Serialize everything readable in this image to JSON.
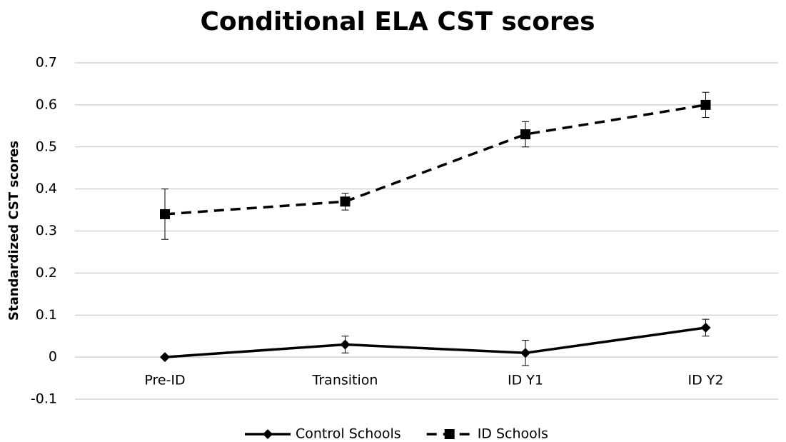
{
  "chart_data": {
    "type": "line",
    "title": "Conditional ELA CST scores",
    "y_label": "Standardized CST scores",
    "categories": [
      "Pre-ID",
      "Transition",
      "ID Y1",
      "ID Y2"
    ],
    "series": [
      {
        "name": "Control Schools",
        "color": "#000000",
        "line_style": "solid",
        "marker": "diamond",
        "values": [
          0,
          0.03,
          0.01,
          0.07
        ],
        "errors": [
          0,
          0.02,
          0.03,
          0.02
        ]
      },
      {
        "name": "ID Schools",
        "color": "#000000",
        "line_style": "dashed",
        "marker": "square",
        "values": [
          0.34,
          0.37,
          0.53,
          0.6
        ],
        "errors": [
          0.06,
          0.02,
          0.03,
          0.03
        ]
      }
    ],
    "ylim": [
      -0.1,
      0.7
    ],
    "yticks": [
      -0.1,
      0,
      0.1,
      0.2,
      0.3,
      0.4,
      0.5,
      0.6,
      0.7
    ],
    "grid": true,
    "legend": "bottom"
  }
}
